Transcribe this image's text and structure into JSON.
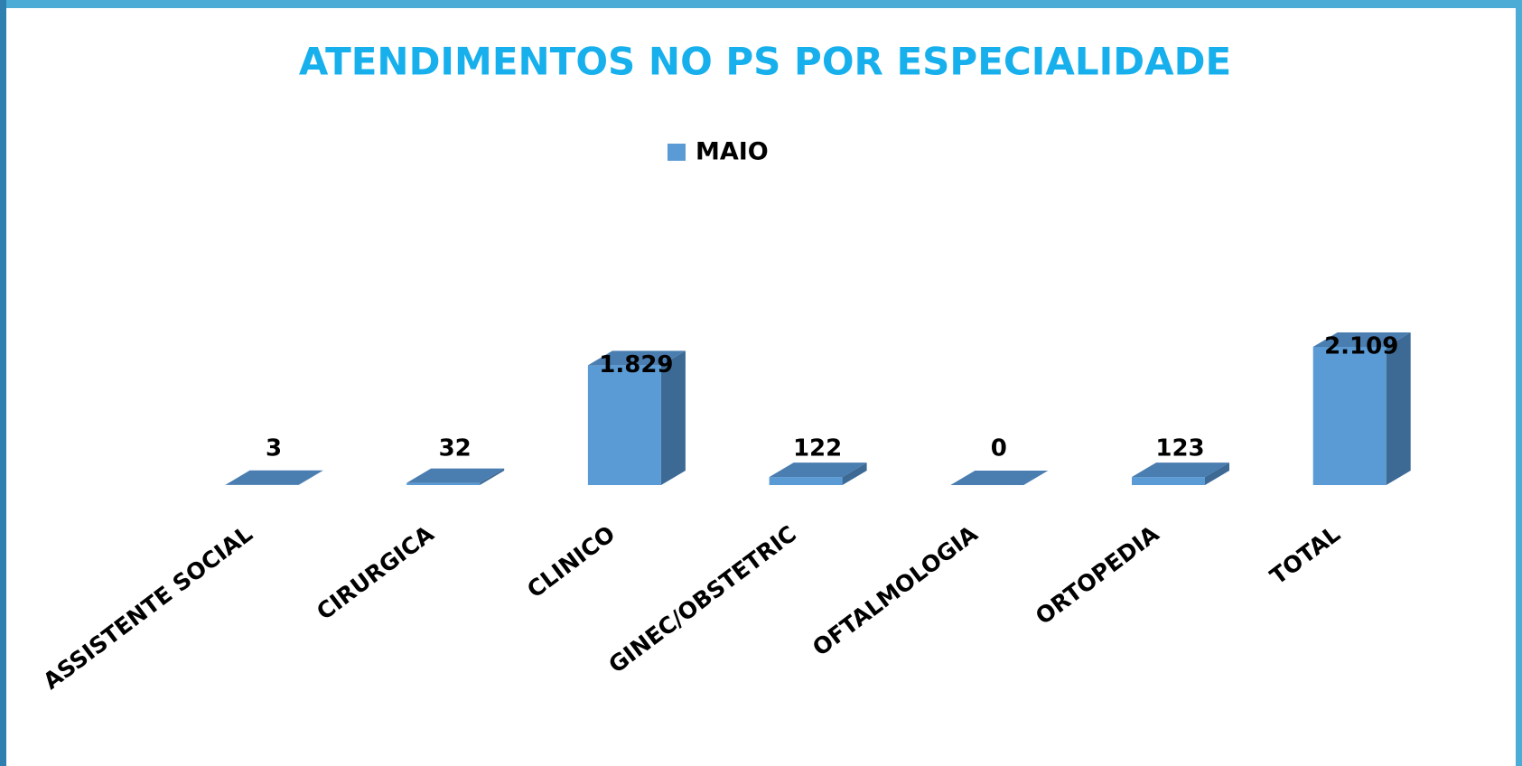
{
  "chart_data": {
    "type": "bar3d",
    "title": "ATENDIMENTOS NO PS POR ESPECIALIDADE",
    "categories": [
      "ASSISTENTE SOCIAL",
      "CIRURGICA",
      "CLINICO",
      "GINEC/OBSTETRIC",
      "OFTALMOLOGIA",
      "ORTOPEDIA",
      "TOTAL"
    ],
    "series": [
      {
        "name": "MAIO",
        "color": "#5b9bd5",
        "values": [
          3,
          32,
          1829,
          122,
          0,
          123,
          2109
        ],
        "value_labels": [
          "3",
          "32",
          "1.829",
          "122",
          "0",
          "123",
          "2.109"
        ]
      }
    ],
    "legend": "top"
  }
}
